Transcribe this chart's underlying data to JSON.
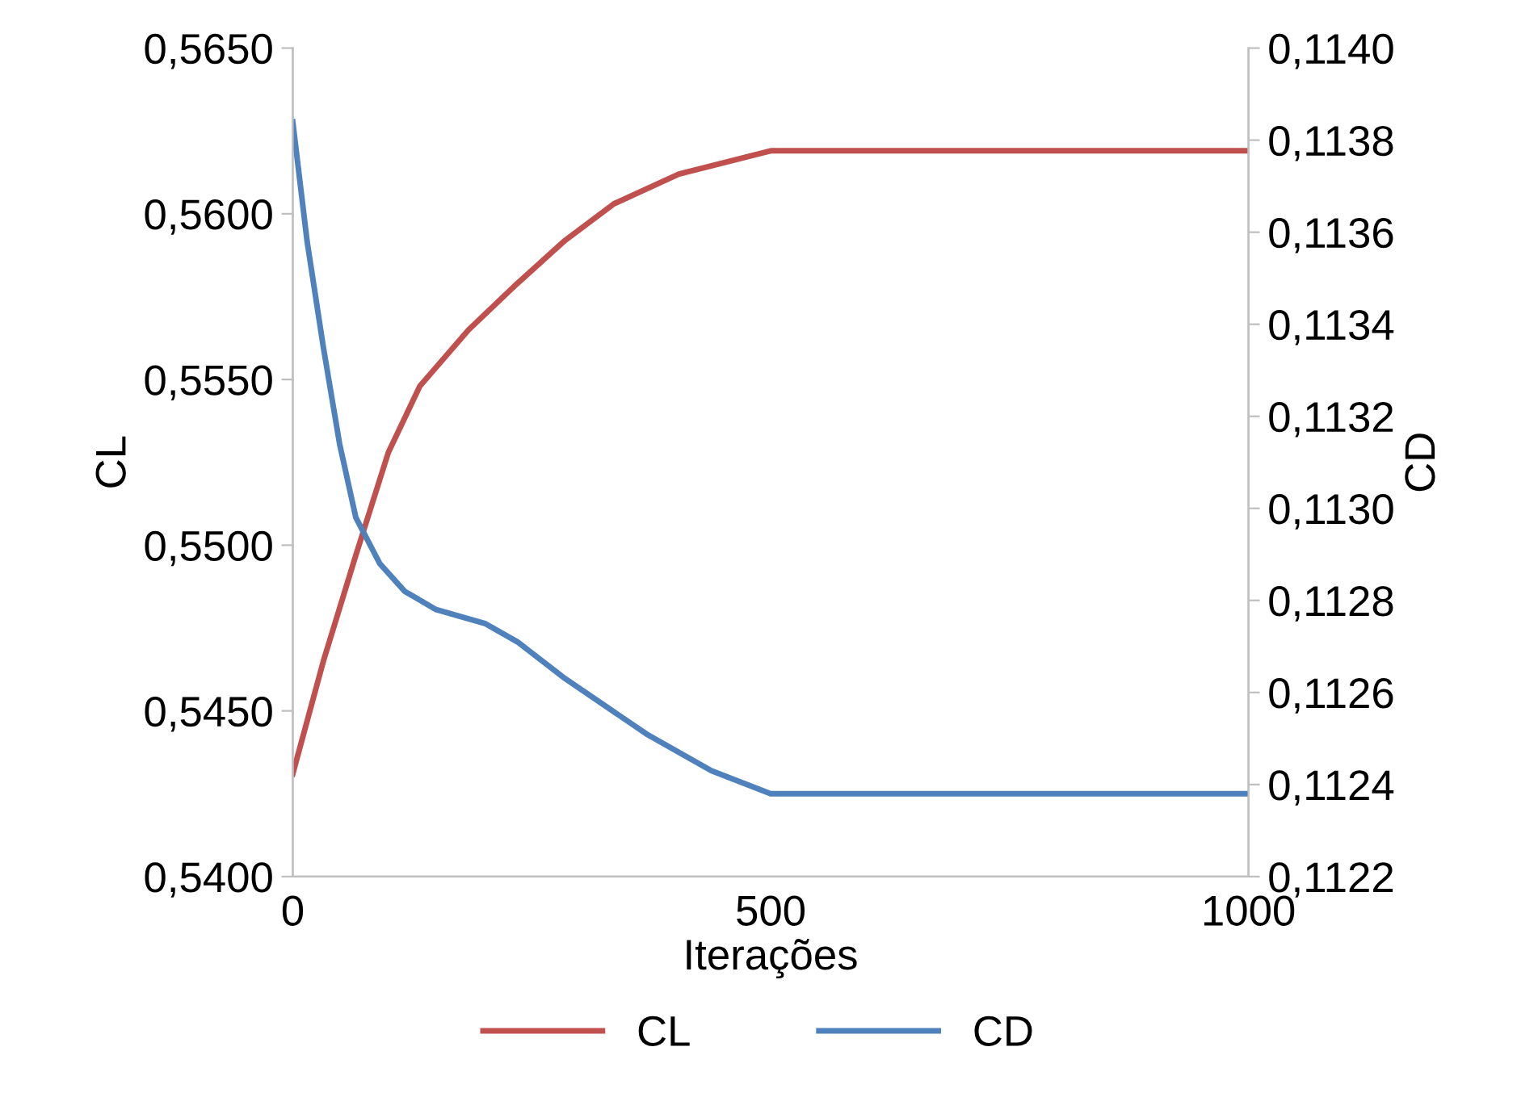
{
  "chart_data": {
    "type": "line",
    "xlabel": "Iterações",
    "ylabel": "CL",
    "y2label": "CD",
    "xlim": [
      0,
      1000
    ],
    "xticks": [
      0,
      500,
      1000
    ],
    "ylim": [
      0.54,
      0.565
    ],
    "yticks": [
      {
        "value": 0.54,
        "label": "0,5400"
      },
      {
        "value": 0.545,
        "label": "0,5450"
      },
      {
        "value": 0.55,
        "label": "0,5500"
      },
      {
        "value": 0.555,
        "label": "0,5550"
      },
      {
        "value": 0.56,
        "label": "0,5600"
      },
      {
        "value": 0.565,
        "label": "0,5650"
      }
    ],
    "y2lim": [
      0.1122,
      0.114
    ],
    "y2ticks": [
      {
        "value": 0.1122,
        "label": "0,1122"
      },
      {
        "value": 0.1124,
        "label": "0,1124"
      },
      {
        "value": 0.1126,
        "label": "0,1126"
      },
      {
        "value": 0.1128,
        "label": "0,1128"
      },
      {
        "value": 0.113,
        "label": "0,1130"
      },
      {
        "value": 0.1132,
        "label": "0,1132"
      },
      {
        "value": 0.1134,
        "label": "0,1134"
      },
      {
        "value": 0.1136,
        "label": "0,1136"
      },
      {
        "value": 0.1138,
        "label": "0,1138"
      },
      {
        "value": 0.114,
        "label": "0,1140"
      }
    ],
    "legend": "bottom",
    "grid": false,
    "marker": "none",
    "line_style": "solid",
    "series": [
      {
        "name": "CL",
        "color": "#c0504d",
        "x": [
          0,
          32,
          66,
          100,
          133,
          184,
          235,
          285,
          336,
          404,
          500,
          1000
        ],
        "values": [
          0.5431,
          0.5465,
          0.5497,
          0.5528,
          0.5548,
          0.5565,
          0.5579,
          0.5592,
          0.5603,
          0.5612,
          0.5619,
          0.5619
        ]
      },
      {
        "name": "CD",
        "color": "#4f81bd",
        "axis": "y2",
        "x": [
          0,
          15,
          32,
          49,
          66,
          91,
          117,
          150,
          201,
          235,
          285,
          370,
          438,
          500,
          1000
        ],
        "values": [
          0.11384,
          0.11358,
          0.11335,
          0.11314,
          0.11298,
          0.11288,
          0.11282,
          0.11278,
          0.11275,
          0.11271,
          0.11263,
          0.11251,
          0.11243,
          0.11238,
          0.11238
        ]
      }
    ]
  }
}
